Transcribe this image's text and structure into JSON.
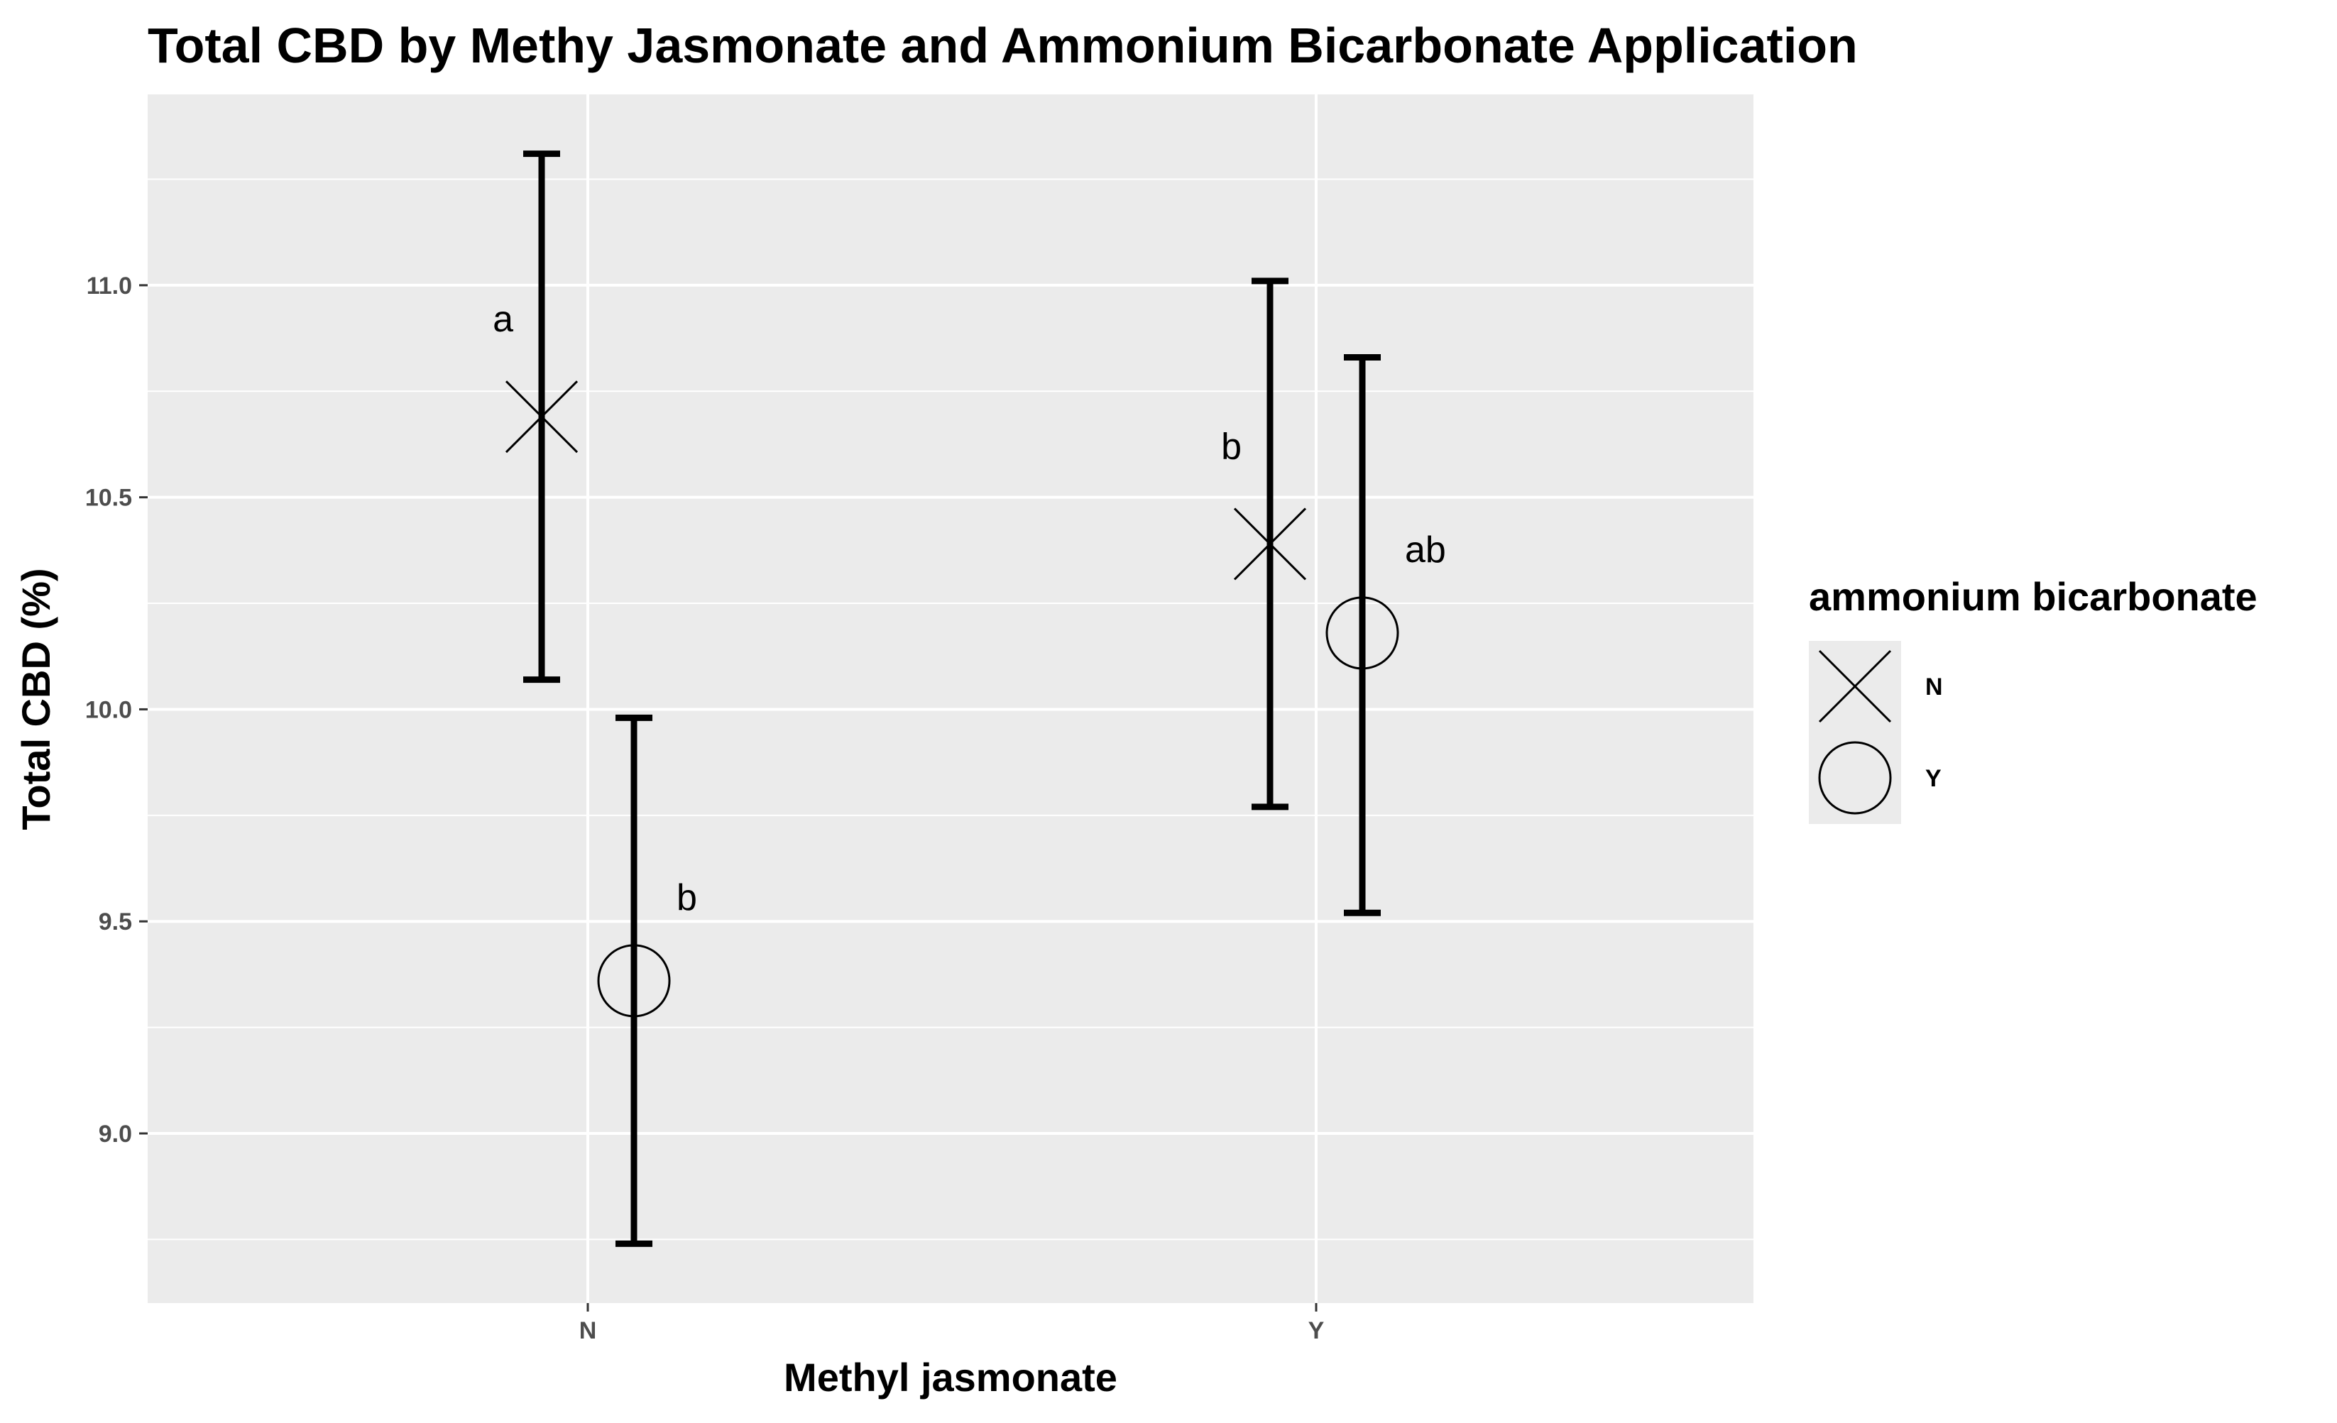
{
  "chart_data": {
    "type": "scatter",
    "title": "Total CBD by Methy Jasmonate and Ammonium Bicarbonate Application",
    "xlabel": "Methyl jasmonate",
    "ylabel": "Total CBD (%)",
    "categories": [
      "N",
      "Y"
    ],
    "ylim": [
      8.6,
      11.45
    ],
    "yticks": [
      "9.0",
      "9.5",
      "10.0",
      "10.5",
      "11.0"
    ],
    "grid": true,
    "legend": {
      "title": "ammonium bicarbonate",
      "position": "right",
      "entries": [
        {
          "label": "N",
          "shape": "x"
        },
        {
          "label": "Y",
          "shape": "circle"
        }
      ]
    },
    "series": [
      {
        "name": "N",
        "shape": "x",
        "points": [
          {
            "x": "N",
            "y": 10.69,
            "ymin": 10.07,
            "ymax": 11.31,
            "label": "a"
          },
          {
            "x": "Y",
            "y": 10.39,
            "ymin": 9.77,
            "ymax": 11.01,
            "label": "b"
          }
        ]
      },
      {
        "name": "Y",
        "shape": "circle",
        "points": [
          {
            "x": "N",
            "y": 9.36,
            "ymin": 8.74,
            "ymax": 9.98,
            "label": "b"
          },
          {
            "x": "Y",
            "y": 10.18,
            "ymin": 9.52,
            "ymax": 10.83,
            "label": "ab"
          }
        ]
      }
    ],
    "colors": {
      "panel": "#ebebeb",
      "grid": "#ffffff",
      "marks": "#000000"
    }
  }
}
